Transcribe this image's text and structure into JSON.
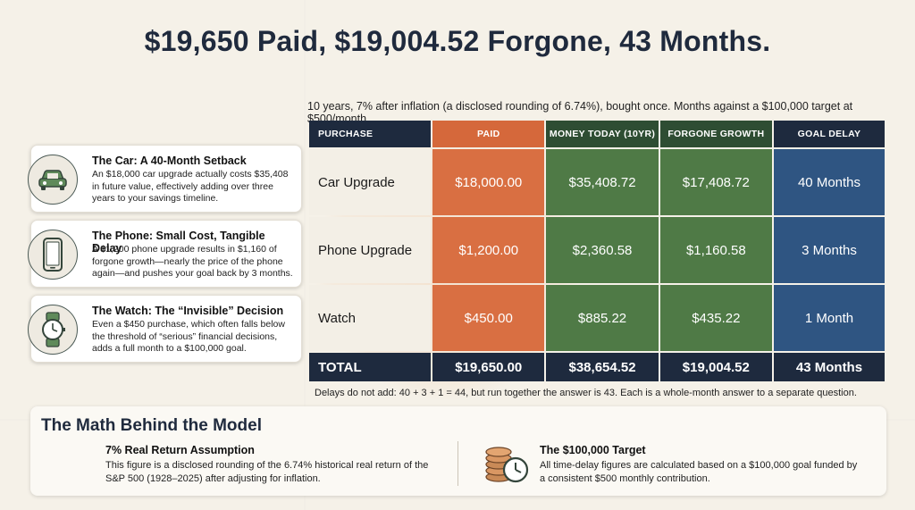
{
  "title": "$19,650 Paid, $19,004.52 Forgone, 43 Months.",
  "subtitle": "10 years, 7% after inflation (a disclosed rounding of 6.74%), bought once. Months against a $100,000 target at $500/month.",
  "cards": [
    {
      "icon": "car-icon",
      "title": "The Car: A 40-Month Setback",
      "body": "An $18,000 car upgrade actually costs $35,408 in future value, effectively adding over three years to your savings timeline."
    },
    {
      "icon": "phone-icon",
      "title": "The Phone: Small Cost, Tangible Delay",
      "body": "A $1,200 phone upgrade results in $1,160 of forgone growth—nearly the price of the phone again—and pushes your goal back by 3 months."
    },
    {
      "icon": "watch-icon",
      "title": "The Watch: The “Invisible” Decision",
      "body": "Even a $450 purchase, which often falls below the threshold of “serious” financial decisions, adds a full month to a $100,000 goal."
    }
  ],
  "table": {
    "headers": [
      "PURCHASE",
      "PAID",
      "MONEY TODAY (10YR)",
      "FORGONE GROWTH",
      "GOAL DELAY"
    ],
    "rows": [
      [
        "Car Upgrade",
        "$18,000.00",
        "$35,408.72",
        "$17,408.72",
        "40 Months"
      ],
      [
        "Phone Upgrade",
        "$1,200.00",
        "$2,360.58",
        "$1,160.58",
        "3 Months"
      ],
      [
        "Watch",
        "$450.00",
        "$885.22",
        "$435.22",
        "1 Month"
      ]
    ],
    "total": [
      "TOTAL",
      "$19,650.00",
      "$38,654.52",
      "$19,004.52",
      "43 Months"
    ]
  },
  "footnote": "Delays do not add: 40 + 3 + 1 = 44, but run together the answer is 43. Each is a whole-month answer to a separate question.",
  "math": {
    "title": "The Math Behind the Model",
    "left": {
      "heading": "7% Real Return Assumption",
      "body": "This figure is a disclosed rounding of the 6.74% historical real return of the S&P 500 (1928–2025) after adjusting for inflation."
    },
    "right": {
      "icon": "coins-clock-icon",
      "heading": "The $100,000 Target",
      "body": "All time-delay figures are calculated based on a $100,000 goal funded by a consistent $500 monthly contribution."
    }
  },
  "colors": {
    "navy": "#1e2a3e",
    "orange": "#d96f42",
    "green": "#4f7a46",
    "blue": "#2f5582"
  }
}
